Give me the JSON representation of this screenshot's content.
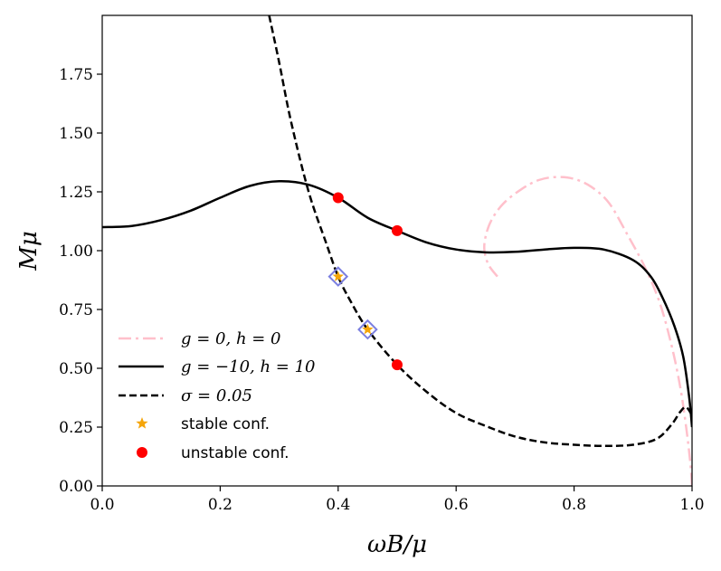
{
  "chart_data": {
    "type": "line",
    "xlabel": "ωB/μ",
    "ylabel": "Mμ",
    "xlim": [
      0.0,
      1.0
    ],
    "ylim": [
      0.0,
      2.0
    ],
    "x_ticks": [
      0.0,
      0.2,
      0.4,
      0.6,
      0.8,
      1.0
    ],
    "x_tick_labels": [
      "0.0",
      "0.2",
      "0.4",
      "0.6",
      "0.8",
      "1.0"
    ],
    "y_ticks": [
      0.0,
      0.25,
      0.5,
      0.75,
      1.0,
      1.25,
      1.5,
      1.75
    ],
    "y_tick_labels": [
      "0.00",
      "0.25",
      "0.50",
      "0.75",
      "1.00",
      "1.25",
      "1.50",
      "1.75"
    ],
    "grid": false,
    "legend_position": "lower-left",
    "series": [
      {
        "name": "g = 0, h = 0",
        "style": "dashdot",
        "color": "#ffc0cb",
        "points": [
          [
            0.67,
            0.89
          ],
          [
            0.655,
            0.94
          ],
          [
            0.648,
            1.0
          ],
          [
            0.65,
            1.06
          ],
          [
            0.66,
            1.13
          ],
          [
            0.68,
            1.2
          ],
          [
            0.71,
            1.26
          ],
          [
            0.74,
            1.3
          ],
          [
            0.77,
            1.313
          ],
          [
            0.8,
            1.305
          ],
          [
            0.83,
            1.27
          ],
          [
            0.86,
            1.2
          ],
          [
            0.89,
            1.07
          ],
          [
            0.92,
            0.93
          ],
          [
            0.945,
            0.78
          ],
          [
            0.965,
            0.6
          ],
          [
            0.98,
            0.42
          ],
          [
            0.99,
            0.25
          ],
          [
            0.997,
            0.1
          ],
          [
            1.0,
            0.0
          ]
        ]
      },
      {
        "name": "g = −10, h = 10",
        "style": "solid",
        "color": "#000000",
        "points": [
          [
            0.0,
            1.1
          ],
          [
            0.05,
            1.105
          ],
          [
            0.1,
            1.13
          ],
          [
            0.15,
            1.17
          ],
          [
            0.2,
            1.225
          ],
          [
            0.25,
            1.275
          ],
          [
            0.3,
            1.295
          ],
          [
            0.35,
            1.28
          ],
          [
            0.4,
            1.225
          ],
          [
            0.45,
            1.14
          ],
          [
            0.5,
            1.085
          ],
          [
            0.55,
            1.035
          ],
          [
            0.6,
            1.005
          ],
          [
            0.65,
            0.993
          ],
          [
            0.7,
            0.995
          ],
          [
            0.75,
            1.005
          ],
          [
            0.8,
            1.012
          ],
          [
            0.85,
            1.005
          ],
          [
            0.9,
            0.96
          ],
          [
            0.93,
            0.89
          ],
          [
            0.95,
            0.8
          ],
          [
            0.97,
            0.68
          ],
          [
            0.985,
            0.55
          ],
          [
            0.995,
            0.38
          ],
          [
            1.0,
            0.25
          ]
        ]
      },
      {
        "name": "σ = 0.05",
        "style": "dashed",
        "color": "#000000",
        "points": [
          [
            0.283,
            2.0
          ],
          [
            0.3,
            1.8
          ],
          [
            0.32,
            1.55
          ],
          [
            0.35,
            1.25
          ],
          [
            0.38,
            1.03
          ],
          [
            0.4,
            0.89
          ],
          [
            0.42,
            0.79
          ],
          [
            0.45,
            0.665
          ],
          [
            0.5,
            0.515
          ],
          [
            0.55,
            0.4
          ],
          [
            0.6,
            0.31
          ],
          [
            0.65,
            0.255
          ],
          [
            0.7,
            0.21
          ],
          [
            0.75,
            0.185
          ],
          [
            0.8,
            0.175
          ],
          [
            0.85,
            0.17
          ],
          [
            0.9,
            0.175
          ],
          [
            0.94,
            0.2
          ],
          [
            0.965,
            0.26
          ],
          [
            0.98,
            0.315
          ],
          [
            0.99,
            0.335
          ],
          [
            1.0,
            0.3
          ]
        ]
      }
    ],
    "stable_conf": {
      "label": "stable conf.",
      "color": "#f5a50a",
      "edge_color": "#7b7fe0",
      "points": [
        [
          0.4,
          0.89
        ],
        [
          0.45,
          0.665
        ]
      ]
    },
    "unstable_conf": {
      "label": "unstable conf.",
      "color": "#ff0000",
      "points": [
        [
          0.4,
          1.225
        ],
        [
          0.5,
          1.085
        ],
        [
          0.5,
          0.515
        ]
      ]
    }
  }
}
